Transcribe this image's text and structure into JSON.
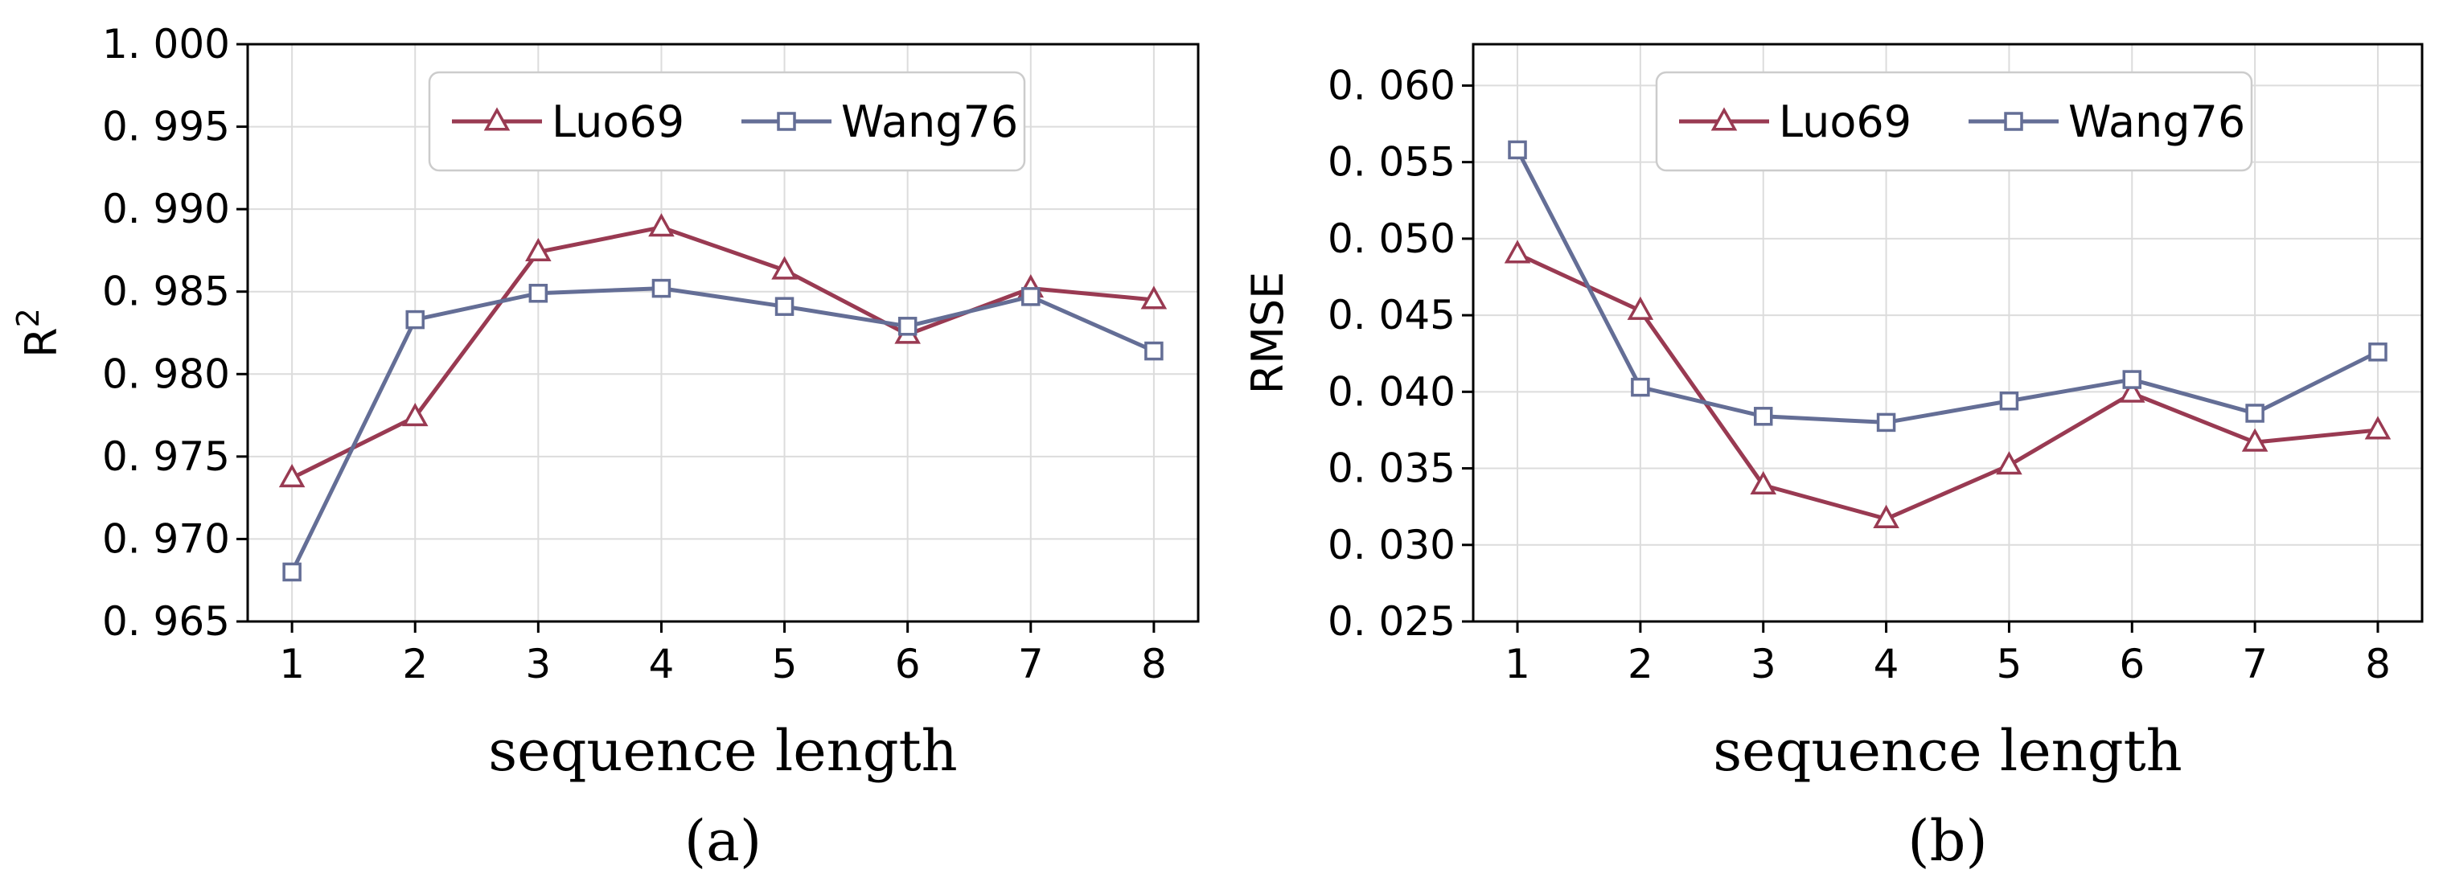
{
  "chart_data": [
    {
      "type": "line",
      "panel_label": "(a)",
      "xlabel": "sequence length",
      "ylabel": "R",
      "ylabel_superscript": "2",
      "x": [
        1,
        2,
        3,
        4,
        5,
        6,
        7,
        8
      ],
      "xticks": [
        "1",
        "2",
        "3",
        "4",
        "5",
        "6",
        "7",
        "8"
      ],
      "ylim": [
        0.965,
        1.0
      ],
      "yticks": [
        0.965,
        0.97,
        0.975,
        0.98,
        0.985,
        0.99,
        0.995,
        1.0
      ],
      "ytick_labels": [
        "0. 965",
        "0. 970",
        "0. 975",
        "0. 980",
        "0. 985",
        "0. 990",
        "0. 995",
        "1. 000"
      ],
      "grid": true,
      "legend_position": "top-center",
      "series": [
        {
          "name": "Luo69",
          "color": "#993A52",
          "marker": "triangle",
          "values": [
            0.9737,
            0.9774,
            0.9874,
            0.9889,
            0.9863,
            0.9824,
            0.9852,
            0.9845
          ]
        },
        {
          "name": "Wang76",
          "color": "#646E96",
          "marker": "square",
          "values": [
            0.968,
            0.9833,
            0.9849,
            0.9852,
            0.9841,
            0.9829,
            0.9847,
            0.9814
          ]
        }
      ]
    },
    {
      "type": "line",
      "panel_label": "(b)",
      "xlabel": "sequence length",
      "ylabel": "RMSE",
      "ylabel_superscript": "",
      "x": [
        1,
        2,
        3,
        4,
        5,
        6,
        7,
        8
      ],
      "xticks": [
        "1",
        "2",
        "3",
        "4",
        "5",
        "6",
        "7",
        "8"
      ],
      "ylim": [
        0.025,
        0.0627
      ],
      "yticks": [
        0.025,
        0.03,
        0.035,
        0.04,
        0.045,
        0.05,
        0.055,
        0.06
      ],
      "ytick_labels": [
        "0. 025",
        "0. 030",
        "0. 035",
        "0. 040",
        "0. 045",
        "0. 050",
        "0. 055",
        "0. 060"
      ],
      "grid": true,
      "legend_position": "top-center",
      "series": [
        {
          "name": "Luo69",
          "color": "#993A52",
          "marker": "triangle",
          "values": [
            0.049,
            0.0453,
            0.0339,
            0.0317,
            0.0352,
            0.0399,
            0.0367,
            0.0375
          ]
        },
        {
          "name": "Wang76",
          "color": "#646E96",
          "marker": "square",
          "values": [
            0.0558,
            0.0403,
            0.0384,
            0.038,
            0.0394,
            0.0408,
            0.0386,
            0.0426
          ]
        }
      ]
    }
  ]
}
